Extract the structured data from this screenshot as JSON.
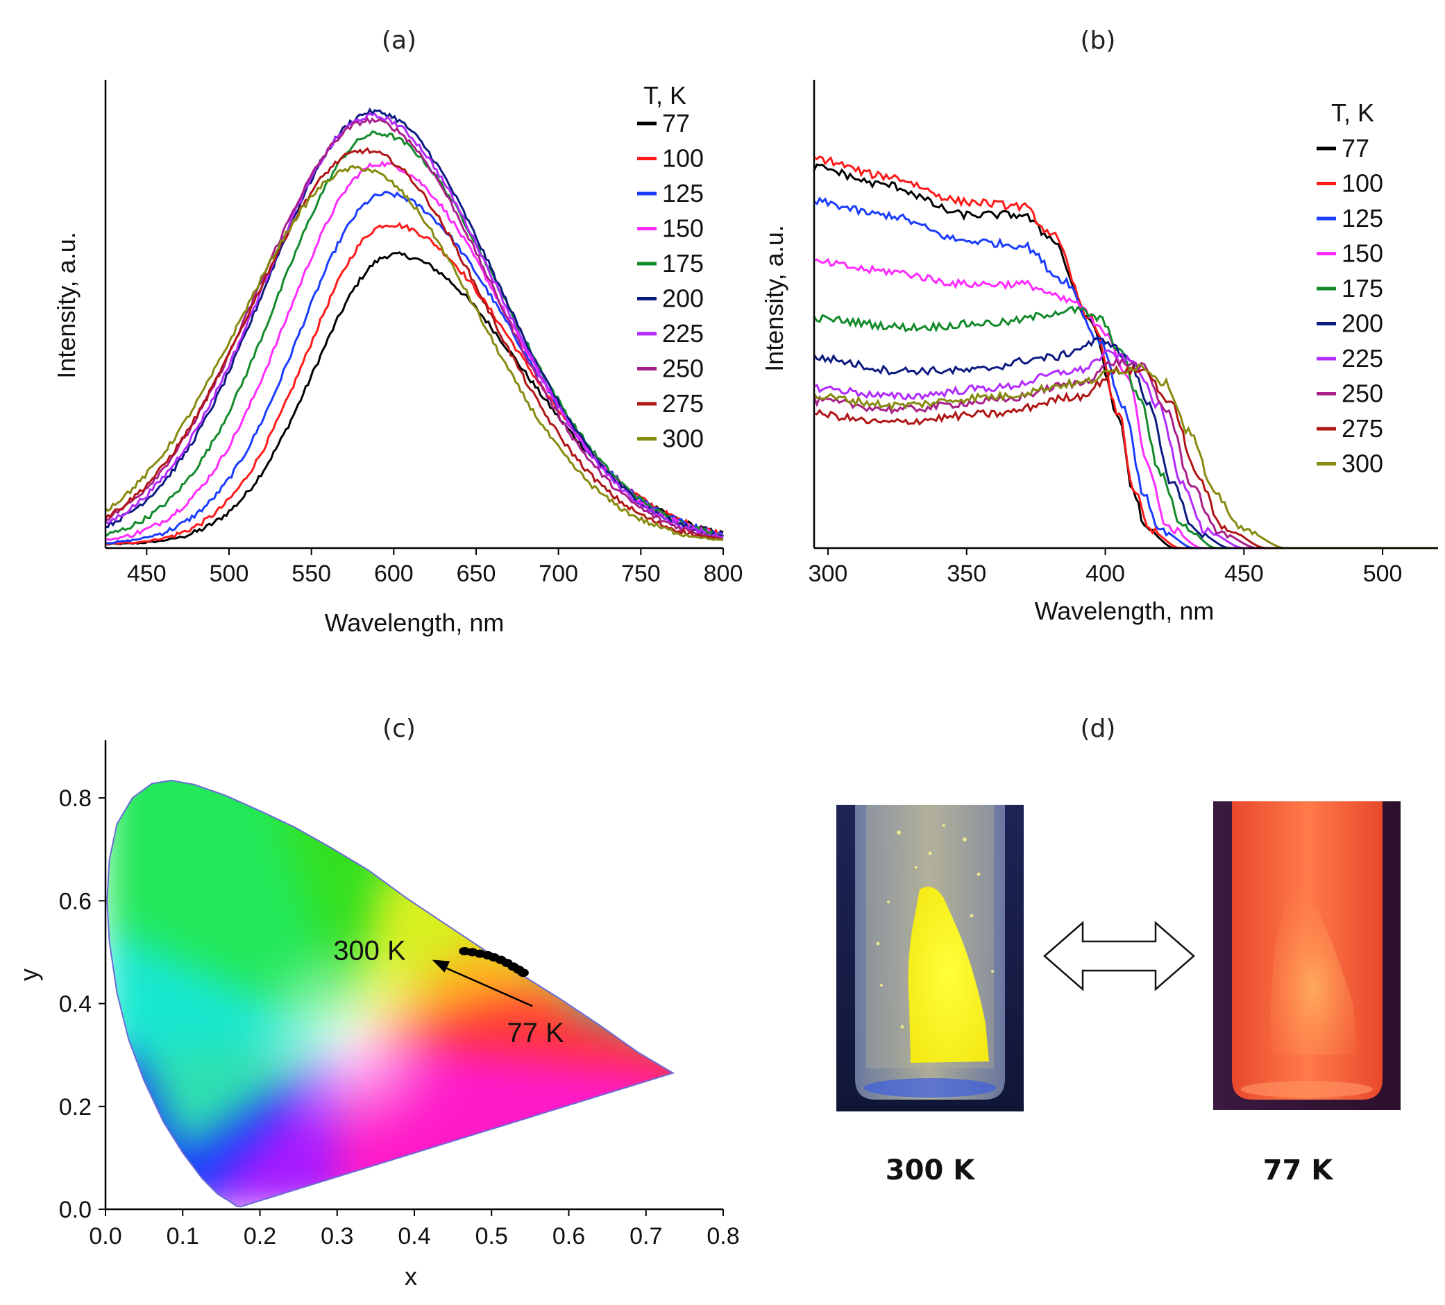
{
  "panels": {
    "a": {
      "label": "(a)"
    },
    "b": {
      "label": "(b)"
    },
    "c": {
      "label": "(c)"
    },
    "d": {
      "label": "(d)"
    }
  },
  "colors": {
    "77": "#000000",
    "100": "#ff1a1a",
    "125": "#1a3cff",
    "150": "#ff2bff",
    "175": "#138a2a",
    "200": "#0c1a80",
    "225": "#b22bff",
    "250": "#a81f8a",
    "275": "#b01515",
    "300": "#868a0f"
  },
  "chart_data": [
    {
      "id": "a",
      "type": "line",
      "title": "(a)",
      "xlabel": "Wavelength, nm",
      "ylabel": "Intensity, a.u.",
      "xlim": [
        425,
        800
      ],
      "ylim": [
        0,
        1.05
      ],
      "xticks": [
        450,
        500,
        550,
        600,
        650,
        700,
        750,
        800
      ],
      "legend_title": "T, K",
      "legend_position": "top-right",
      "series": [
        {
          "name": "77",
          "peak": 600,
          "amp": 0.67,
          "sl": 48,
          "sr": 78
        },
        {
          "name": "100",
          "peak": 597,
          "amp": 0.74,
          "sl": 49,
          "sr": 78
        },
        {
          "name": "125",
          "peak": 595,
          "amp": 0.81,
          "sl": 52,
          "sr": 77
        },
        {
          "name": "150",
          "peak": 592,
          "amp": 0.88,
          "sl": 56,
          "sr": 76
        },
        {
          "name": "175",
          "peak": 590,
          "amp": 0.95,
          "sl": 60,
          "sr": 76
        },
        {
          "name": "200",
          "peak": 588,
          "amp": 1.0,
          "sl": 65,
          "sr": 75
        },
        {
          "name": "225",
          "peak": 587,
          "amp": 0.99,
          "sl": 66,
          "sr": 75
        },
        {
          "name": "250",
          "peak": 586,
          "amp": 0.98,
          "sl": 68,
          "sr": 74
        },
        {
          "name": "275",
          "peak": 582,
          "amp": 0.91,
          "sl": 68,
          "sr": 74
        },
        {
          "name": "300",
          "peak": 578,
          "amp": 0.87,
          "sl": 70,
          "sr": 74
        }
      ]
    },
    {
      "id": "b",
      "type": "line",
      "title": "(b)",
      "xlabel": "Wavelength, nm",
      "ylabel": "Intensity, a.u.",
      "xlim": [
        295,
        520
      ],
      "ylim": [
        0,
        1.05
      ],
      "xticks": [
        300,
        350,
        400,
        450,
        500
      ],
      "legend_title": "T, K",
      "legend_position": "top-right",
      "series": [
        {
          "name": "77",
          "points": [
            [
              295,
              0.88
            ],
            [
              320,
              0.84
            ],
            [
              350,
              0.77
            ],
            [
              370,
              0.77
            ],
            [
              380,
              0.72
            ],
            [
              395,
              0.52
            ],
            [
              405,
              0.3
            ],
            [
              410,
              0.13
            ],
            [
              415,
              0.04
            ],
            [
              425,
              0.0
            ]
          ]
        },
        {
          "name": "100",
          "points": [
            [
              295,
              0.9
            ],
            [
              320,
              0.86
            ],
            [
              350,
              0.8
            ],
            [
              370,
              0.79
            ],
            [
              380,
              0.73
            ],
            [
              395,
              0.53
            ],
            [
              405,
              0.31
            ],
            [
              410,
              0.14
            ],
            [
              416,
              0.04
            ],
            [
              427,
              0.0
            ]
          ]
        },
        {
          "name": "125",
          "points": [
            [
              295,
              0.8
            ],
            [
              320,
              0.77
            ],
            [
              350,
              0.71
            ],
            [
              370,
              0.7
            ],
            [
              385,
              0.62
            ],
            [
              398,
              0.48
            ],
            [
              407,
              0.32
            ],
            [
              414,
              0.12
            ],
            [
              420,
              0.04
            ],
            [
              432,
              0.0
            ]
          ]
        },
        {
          "name": "150",
          "points": [
            [
              295,
              0.66
            ],
            [
              320,
              0.64
            ],
            [
              350,
              0.61
            ],
            [
              370,
              0.61
            ],
            [
              388,
              0.57
            ],
            [
              400,
              0.5
            ],
            [
              408,
              0.4
            ],
            [
              415,
              0.2
            ],
            [
              422,
              0.05
            ],
            [
              435,
              0.0
            ]
          ]
        },
        {
          "name": "175",
          "points": [
            [
              295,
              0.53
            ],
            [
              330,
              0.51
            ],
            [
              360,
              0.52
            ],
            [
              390,
              0.55
            ],
            [
              398,
              0.53
            ],
            [
              405,
              0.46
            ],
            [
              412,
              0.35
            ],
            [
              420,
              0.17
            ],
            [
              428,
              0.05
            ],
            [
              440,
              0.0
            ]
          ]
        },
        {
          "name": "200",
          "points": [
            [
              295,
              0.44
            ],
            [
              325,
              0.41
            ],
            [
              350,
              0.41
            ],
            [
              380,
              0.44
            ],
            [
              400,
              0.48
            ],
            [
              408,
              0.44
            ],
            [
              416,
              0.33
            ],
            [
              424,
              0.15
            ],
            [
              432,
              0.04
            ],
            [
              445,
              0.0
            ]
          ]
        },
        {
          "name": "225",
          "points": [
            [
              295,
              0.37
            ],
            [
              325,
              0.35
            ],
            [
              360,
              0.37
            ],
            [
              390,
              0.41
            ],
            [
              402,
              0.45
            ],
            [
              410,
              0.43
            ],
            [
              419,
              0.33
            ],
            [
              428,
              0.15
            ],
            [
              436,
              0.04
            ],
            [
              450,
              0.0
            ]
          ]
        },
        {
          "name": "250",
          "points": [
            [
              295,
              0.34
            ],
            [
              325,
              0.32
            ],
            [
              360,
              0.34
            ],
            [
              390,
              0.38
            ],
            [
              404,
              0.43
            ],
            [
              413,
              0.42
            ],
            [
              422,
              0.32
            ],
            [
              431,
              0.15
            ],
            [
              440,
              0.04
            ],
            [
              455,
              0.0
            ]
          ]
        },
        {
          "name": "275",
          "points": [
            [
              295,
              0.31
            ],
            [
              320,
              0.29
            ],
            [
              360,
              0.31
            ],
            [
              390,
              0.35
            ],
            [
              405,
              0.41
            ],
            [
              414,
              0.41
            ],
            [
              424,
              0.33
            ],
            [
              433,
              0.17
            ],
            [
              442,
              0.05
            ],
            [
              458,
              0.0
            ]
          ]
        },
        {
          "name": "300",
          "points": [
            [
              295,
              0.35
            ],
            [
              325,
              0.33
            ],
            [
              360,
              0.35
            ],
            [
              390,
              0.38
            ],
            [
              405,
              0.41
            ],
            [
              413,
              0.42
            ],
            [
              422,
              0.38
            ],
            [
              430,
              0.27
            ],
            [
              440,
              0.12
            ],
            [
              450,
              0.04
            ],
            [
              465,
              0.0
            ]
          ]
        }
      ]
    },
    {
      "id": "c",
      "type": "scatter",
      "title": "(c)",
      "xlabel": "x",
      "ylabel": "y",
      "xlim": [
        0,
        0.8
      ],
      "ylim": [
        0,
        0.9
      ],
      "xticks": [
        0.0,
        0.1,
        0.2,
        0.3,
        0.4,
        0.5,
        0.6,
        0.7,
        0.8
      ],
      "yticks": [
        0.0,
        0.2,
        0.4,
        0.6,
        0.8
      ],
      "tick_labels_x": [
        "0.0",
        "0.1",
        "0.2",
        "0.3",
        "0.4",
        "0.5",
        "0.6",
        "0.7",
        "0.8"
      ],
      "tick_labels_y": [
        "0.0",
        "0.2",
        "0.4",
        "0.6",
        "0.8"
      ],
      "points": [
        [
          0.465,
          0.502
        ],
        [
          0.475,
          0.5
        ],
        [
          0.485,
          0.497
        ],
        [
          0.495,
          0.494
        ],
        [
          0.503,
          0.49
        ],
        [
          0.512,
          0.485
        ],
        [
          0.52,
          0.479
        ],
        [
          0.528,
          0.472
        ],
        [
          0.535,
          0.466
        ],
        [
          0.541,
          0.46
        ]
      ],
      "annotations": [
        {
          "text": "300 K",
          "x": 0.295,
          "y": 0.485
        },
        {
          "text": "77 K",
          "x": 0.52,
          "y": 0.325
        }
      ],
      "arrow": {
        "from": [
          0.553,
          0.395
        ],
        "to": [
          0.423,
          0.485
        ]
      }
    }
  ],
  "photos": {
    "left_label": "300 K",
    "right_label": "77 K"
  }
}
